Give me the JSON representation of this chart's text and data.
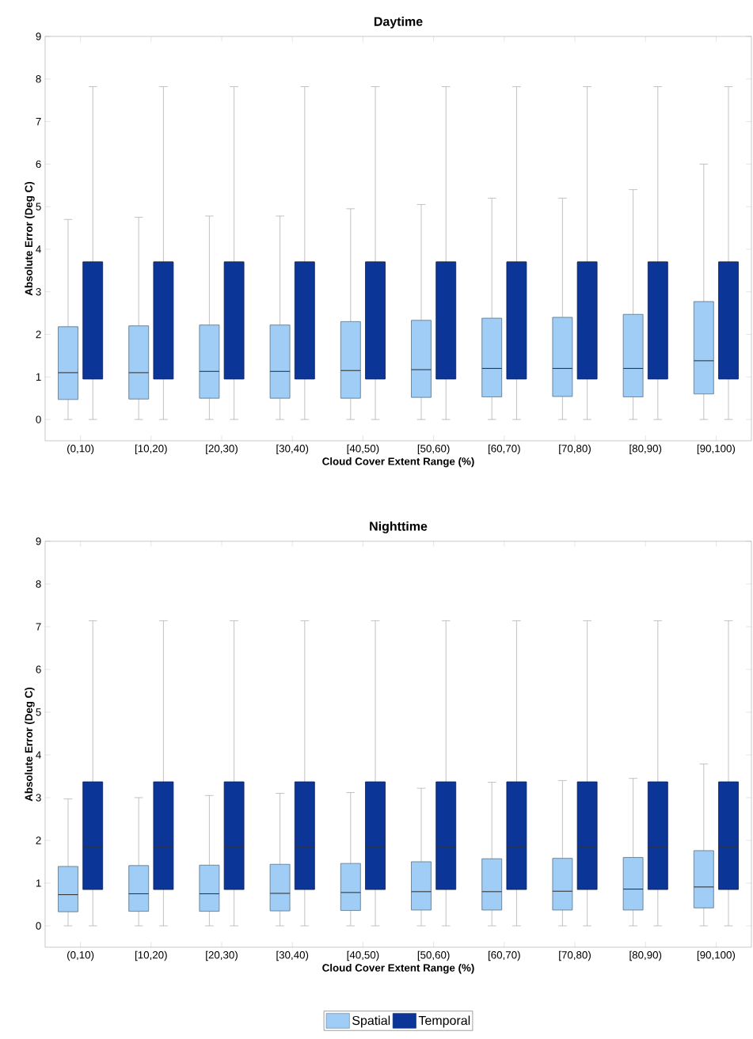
{
  "chart_data": [
    {
      "type": "box",
      "title": "Daytime",
      "xlabel": "Cloud Cover Extent Range (%)",
      "ylabel": "Absolute Error (Deg C)",
      "categories": [
        "(0,10)",
        "[10,20)",
        "[20,30)",
        "[30,40)",
        "[40,50)",
        "[50,60)",
        "[60,70)",
        "[70,80)",
        "[80,90)",
        "[90,100)"
      ],
      "ylim": [
        -0.5,
        9
      ],
      "yticks": [
        0,
        1,
        2,
        3,
        4,
        5,
        6,
        7,
        8,
        9
      ],
      "grid": false,
      "series": [
        {
          "color": "#9fcdf6",
          "boxes": [
            {
              "low": 0,
              "q1": 0.47,
              "median": 1.1,
              "q3": 2.18,
              "high": 4.7
            },
            {
              "low": 0,
              "q1": 0.48,
              "median": 1.1,
              "q3": 2.2,
              "high": 4.75
            },
            {
              "low": 0,
              "q1": 0.5,
              "median": 1.13,
              "q3": 2.22,
              "high": 4.78
            },
            {
              "low": 0,
              "q1": 0.5,
              "median": 1.13,
              "q3": 2.22,
              "high": 4.78
            },
            {
              "low": 0,
              "q1": 0.5,
              "median": 1.15,
              "q3": 2.3,
              "high": 4.95
            },
            {
              "low": 0,
              "q1": 0.52,
              "median": 1.17,
              "q3": 2.33,
              "high": 5.05
            },
            {
              "low": 0,
              "q1": 0.53,
              "median": 1.2,
              "q3": 2.38,
              "high": 5.2
            },
            {
              "low": 0,
              "q1": 0.54,
              "median": 1.2,
              "q3": 2.4,
              "high": 5.2
            },
            {
              "low": 0,
              "q1": 0.53,
              "median": 1.2,
              "q3": 2.47,
              "high": 5.4
            },
            {
              "low": 0,
              "q1": 0.6,
              "median": 1.38,
              "q3": 2.77,
              "high": 6.0
            }
          ]
        },
        {
          "color": "#0b3596",
          "boxes": [
            {
              "low": 0,
              "q1": 0.95,
              "median": 3.7,
              "q3": 3.7,
              "high": 7.82
            },
            {
              "low": 0,
              "q1": 0.95,
              "median": 3.7,
              "q3": 3.7,
              "high": 7.82
            },
            {
              "low": 0,
              "q1": 0.95,
              "median": 3.7,
              "q3": 3.7,
              "high": 7.82
            },
            {
              "low": 0,
              "q1": 0.95,
              "median": 3.7,
              "q3": 3.7,
              "high": 7.82
            },
            {
              "low": 0,
              "q1": 0.95,
              "median": 3.7,
              "q3": 3.7,
              "high": 7.82
            },
            {
              "low": 0,
              "q1": 0.95,
              "median": 3.7,
              "q3": 3.7,
              "high": 7.82
            },
            {
              "low": 0,
              "q1": 0.95,
              "median": 3.7,
              "q3": 3.7,
              "high": 7.82
            },
            {
              "low": 0,
              "q1": 0.95,
              "median": 3.7,
              "q3": 3.7,
              "high": 7.82
            },
            {
              "low": 0,
              "q1": 0.95,
              "median": 3.7,
              "q3": 3.7,
              "high": 7.82
            },
            {
              "low": 0,
              "q1": 0.95,
              "median": 3.7,
              "q3": 3.7,
              "high": 7.82
            }
          ]
        }
      ]
    },
    {
      "type": "box",
      "title": "Nighttime",
      "xlabel": "Cloud Cover Extent Range (%)",
      "ylabel": "Absolute Error (Deg C)",
      "categories": [
        "(0,10)",
        "[10,20)",
        "[20,30)",
        "[30,40)",
        "[40,50)",
        "[50,60)",
        "[60,70)",
        "[70,80)",
        "[80,90)",
        "[90,100)"
      ],
      "ylim": [
        -0.5,
        9
      ],
      "yticks": [
        0,
        1,
        2,
        3,
        4,
        5,
        6,
        7,
        8,
        9
      ],
      "grid": false,
      "legend": "bottom",
      "series": [
        {
          "name": "Spatial",
          "color": "#9fcdf6",
          "boxes": [
            {
              "low": 0,
              "q1": 0.33,
              "median": 0.73,
              "q3": 1.39,
              "high": 2.97
            },
            {
              "low": 0,
              "q1": 0.34,
              "median": 0.75,
              "q3": 1.41,
              "high": 3.0
            },
            {
              "low": 0,
              "q1": 0.34,
              "median": 0.75,
              "q3": 1.42,
              "high": 3.05
            },
            {
              "low": 0,
              "q1": 0.35,
              "median": 0.76,
              "q3": 1.44,
              "high": 3.1
            },
            {
              "low": 0,
              "q1": 0.36,
              "median": 0.78,
              "q3": 1.46,
              "high": 3.12
            },
            {
              "low": 0,
              "q1": 0.37,
              "median": 0.8,
              "q3": 1.5,
              "high": 3.22
            },
            {
              "low": 0,
              "q1": 0.37,
              "median": 0.8,
              "q3": 1.57,
              "high": 3.36
            },
            {
              "low": 0,
              "q1": 0.37,
              "median": 0.81,
              "q3": 1.58,
              "high": 3.4
            },
            {
              "low": 0,
              "q1": 0.37,
              "median": 0.86,
              "q3": 1.6,
              "high": 3.45
            },
            {
              "low": 0,
              "q1": 0.42,
              "median": 0.91,
              "q3": 1.76,
              "high": 3.79
            }
          ]
        },
        {
          "name": "Temporal",
          "color": "#0b3596",
          "boxes": [
            {
              "low": 0,
              "q1": 0.85,
              "median": 1.85,
              "q3": 3.37,
              "high": 7.14
            },
            {
              "low": 0,
              "q1": 0.85,
              "median": 1.85,
              "q3": 3.37,
              "high": 7.14
            },
            {
              "low": 0,
              "q1": 0.85,
              "median": 1.85,
              "q3": 3.37,
              "high": 7.14
            },
            {
              "low": 0,
              "q1": 0.85,
              "median": 1.85,
              "q3": 3.37,
              "high": 7.14
            },
            {
              "low": 0,
              "q1": 0.85,
              "median": 1.85,
              "q3": 3.37,
              "high": 7.14
            },
            {
              "low": 0,
              "q1": 0.85,
              "median": 1.85,
              "q3": 3.37,
              "high": 7.14
            },
            {
              "low": 0,
              "q1": 0.85,
              "median": 1.85,
              "q3": 3.37,
              "high": 7.14
            },
            {
              "low": 0,
              "q1": 0.85,
              "median": 1.85,
              "q3": 3.37,
              "high": 7.14
            },
            {
              "low": 0,
              "q1": 0.85,
              "median": 1.85,
              "q3": 3.37,
              "high": 7.14
            },
            {
              "low": 0,
              "q1": 0.85,
              "median": 1.85,
              "q3": 3.37,
              "high": 7.14
            }
          ]
        }
      ]
    }
  ]
}
